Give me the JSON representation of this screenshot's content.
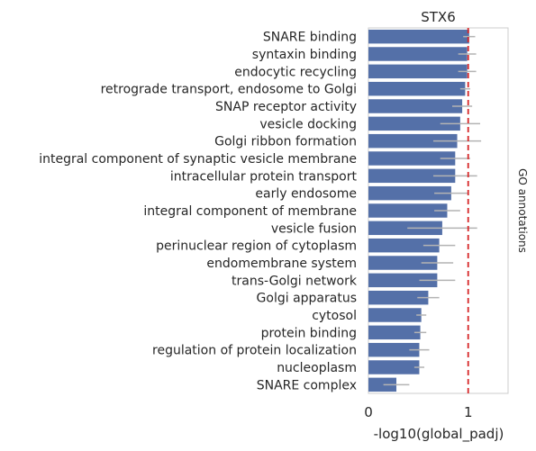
{
  "chart_data": {
    "type": "bar",
    "orientation": "horizontal",
    "title": "STX6",
    "xlabel": "-log10(global_padj)",
    "side_label": "GO annotations",
    "xlim": [
      0,
      1.4
    ],
    "xticks": [
      0,
      1
    ],
    "threshold": 1.0,
    "colors": {
      "bar": "#5470a8",
      "error": "#b3b3b3",
      "threshold": "#d62728",
      "frame": "#cccccc"
    },
    "categories": [
      "SNARE binding",
      "syntaxin binding",
      "endocytic recycling",
      "retrograde transport, endosome to Golgi",
      "SNAP receptor activity",
      "vesicle docking",
      "Golgi ribbon formation",
      "integral component of synaptic vesicle membrane",
      "intracellular protein transport",
      "early endosome",
      "integral component of membrane",
      "vesicle fusion",
      "perinuclear region of cytoplasm",
      "endomembrane system",
      "trans-Golgi network",
      "Golgi apparatus",
      "cytosol",
      "protein binding",
      "regulation of protein localization",
      "nucleoplasm",
      "SNARE complex"
    ],
    "values": [
      1.01,
      0.99,
      0.99,
      0.97,
      0.94,
      0.92,
      0.89,
      0.87,
      0.87,
      0.83,
      0.79,
      0.74,
      0.71,
      0.69,
      0.69,
      0.6,
      0.53,
      0.52,
      0.51,
      0.51,
      0.28
    ],
    "error": [
      0.06,
      0.09,
      0.09,
      0.05,
      0.1,
      0.2,
      0.24,
      0.15,
      0.22,
      0.17,
      0.13,
      0.35,
      0.16,
      0.16,
      0.18,
      0.11,
      0.05,
      0.06,
      0.1,
      0.05,
      0.13
    ]
  }
}
